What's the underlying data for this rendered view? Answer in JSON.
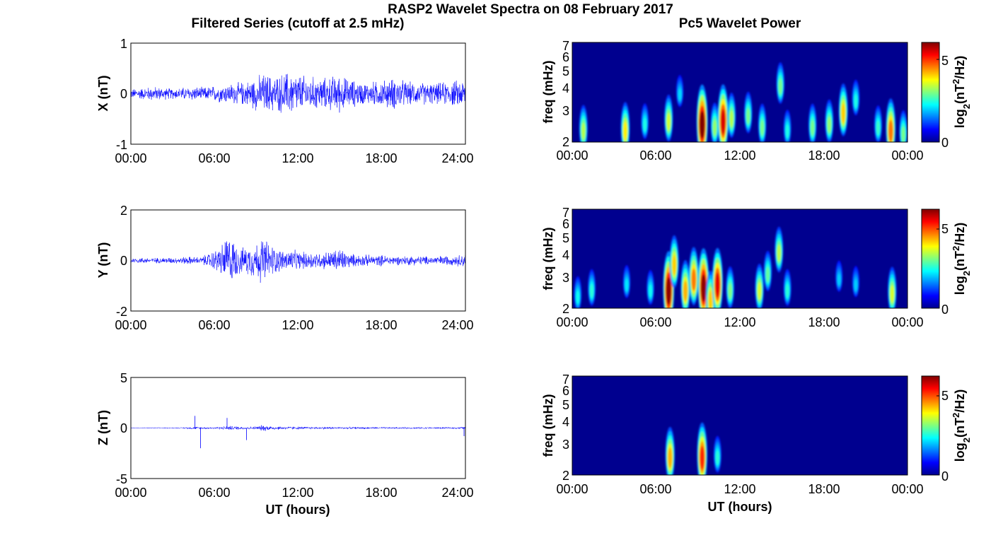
{
  "figure_title": "RASP2 Wavelet Spectra on 08 February 2017",
  "left_column_title": "Filtered Series (cutoff at 2.5 mHz)",
  "right_column_title": "Pc5 Wavelet Power",
  "xlabel": "UT (hours)",
  "colorbar_label": "log2(nT2/Hz)",
  "colors": {
    "series_line": "#0000ff",
    "spectrum_background": "#00008f"
  },
  "chart_data": [
    {
      "type": "line",
      "panel": "filtered-x",
      "ylabel": "X (nT)",
      "xlim": [
        0,
        24
      ],
      "ylim": [
        -1,
        1
      ],
      "x_ticks": [
        "00:00",
        "06:00",
        "12:00",
        "18:00",
        "24:00"
      ],
      "y_ticks": [
        "1",
        "0",
        "-1"
      ],
      "series": [
        {
          "x": [
            0,
            0.5,
            1,
            1.5,
            2,
            2.5,
            3,
            3.5,
            4,
            4.5,
            5,
            5.5,
            6,
            6.5,
            7,
            7.5,
            8,
            8.5,
            9,
            9.5,
            10,
            10.5,
            11,
            11.5,
            12,
            12.5,
            13,
            13.5,
            14,
            14.5,
            15,
            15.5,
            16,
            16.5,
            17,
            17.5,
            18,
            18.5,
            19,
            19.5,
            20,
            20.5,
            21,
            21.5,
            22,
            22.5,
            23,
            23.5,
            24
          ],
          "amplitude": [
            0.1,
            0.12,
            0.14,
            0.16,
            0.15,
            0.13,
            0.12,
            0.13,
            0.15,
            0.16,
            0.14,
            0.15,
            0.18,
            0.2,
            0.22,
            0.24,
            0.26,
            0.3,
            0.38,
            0.45,
            0.42,
            0.4,
            0.48,
            0.5,
            0.44,
            0.4,
            0.38,
            0.36,
            0.35,
            0.4,
            0.42,
            0.34,
            0.3,
            0.26,
            0.24,
            0.28,
            0.3,
            0.32,
            0.36,
            0.3,
            0.26,
            0.24,
            0.25,
            0.24,
            0.23,
            0.26,
            0.28,
            0.3,
            0.32
          ]
        }
      ]
    },
    {
      "type": "line",
      "panel": "filtered-y",
      "ylabel": "Y (nT)",
      "xlim": [
        0,
        24
      ],
      "ylim": [
        -2,
        2
      ],
      "x_ticks": [
        "00:00",
        "06:00",
        "12:00",
        "18:00",
        "24:00"
      ],
      "y_ticks": [
        "2",
        "0",
        "-2"
      ],
      "series": [
        {
          "x": [
            0,
            0.5,
            1,
            1.5,
            2,
            2.5,
            3,
            3.5,
            4,
            4.5,
            5,
            5.5,
            6,
            6.5,
            7,
            7.5,
            8,
            8.5,
            9,
            9.5,
            10,
            10.5,
            11,
            11.5,
            12,
            12.5,
            13,
            13.5,
            14,
            14.5,
            15,
            15.5,
            16,
            16.5,
            17,
            17.5,
            18,
            18.5,
            19,
            19.5,
            20,
            20.5,
            21,
            21.5,
            22,
            22.5,
            23,
            23.5,
            24
          ],
          "amplitude": [
            0.12,
            0.12,
            0.13,
            0.12,
            0.12,
            0.14,
            0.13,
            0.13,
            0.18,
            0.16,
            0.15,
            0.3,
            0.45,
            0.7,
            1.2,
            0.8,
            0.55,
            0.7,
            0.8,
            1.1,
            0.75,
            0.55,
            0.45,
            0.5,
            0.4,
            0.38,
            0.42,
            0.35,
            0.4,
            0.45,
            0.6,
            0.35,
            0.28,
            0.26,
            0.25,
            0.22,
            0.25,
            0.22,
            0.2,
            0.2,
            0.22,
            0.2,
            0.2,
            0.18,
            0.2,
            0.22,
            0.2,
            0.26,
            0.3
          ]
        }
      ]
    },
    {
      "type": "line",
      "panel": "filtered-z",
      "ylabel": "Z (nT)",
      "xlim": [
        0,
        24
      ],
      "ylim": [
        -5,
        5
      ],
      "x_ticks": [
        "00:00",
        "06:00",
        "12:00",
        "18:00",
        "24:00"
      ],
      "y_ticks": [
        "5",
        "0",
        "-5"
      ],
      "series": [
        {
          "x": [
            0,
            0.5,
            1,
            1.5,
            2,
            2.5,
            3,
            3.5,
            4,
            4.5,
            5,
            5.5,
            6,
            6.5,
            7,
            7.5,
            8,
            8.5,
            9,
            9.5,
            10,
            10.5,
            11,
            11.5,
            12,
            12.5,
            13,
            13.5,
            14,
            14.5,
            15,
            15.5,
            16,
            16.5,
            17,
            17.5,
            18,
            18.5,
            19,
            19.5,
            20,
            20.5,
            21,
            21.5,
            22,
            22.5,
            23,
            23.5,
            24
          ],
          "amplitude": [
            0.05,
            0.05,
            0.05,
            0.06,
            0.05,
            0.05,
            0.06,
            0.06,
            0.1,
            0.15,
            0.12,
            0.12,
            0.14,
            0.16,
            0.25,
            0.2,
            0.18,
            0.16,
            0.2,
            0.35,
            0.25,
            0.2,
            0.18,
            0.18,
            0.16,
            0.15,
            0.14,
            0.14,
            0.15,
            0.14,
            0.13,
            0.12,
            0.12,
            0.12,
            0.12,
            0.11,
            0.11,
            0.11,
            0.1,
            0.1,
            0.1,
            0.1,
            0.1,
            0.1,
            0.1,
            0.1,
            0.1,
            0.12,
            0.15
          ]
        }
      ],
      "spikes": [
        {
          "x": 4.6,
          "y": 1.2
        },
        {
          "x": 5.0,
          "y": -2.0
        },
        {
          "x": 6.9,
          "y": 1.0
        },
        {
          "x": 8.3,
          "y": -1.2
        },
        {
          "x": 23.9,
          "y": -0.8
        }
      ]
    },
    {
      "type": "heatmap",
      "panel": "pc5-power-x",
      "ylabel": "freq (mHz)",
      "yscale": "log",
      "ylim": [
        2,
        7
      ],
      "xlim": [
        0,
        24
      ],
      "x_ticks": [
        "00:00",
        "06:00",
        "12:00",
        "18:00",
        "00:00"
      ],
      "y_ticks": [
        "2",
        "3",
        "4",
        "5",
        "6",
        "7"
      ],
      "colorbar": {
        "range": [
          0,
          6
        ],
        "ticks": [
          "0",
          "5"
        ]
      },
      "blobs": [
        {
          "t": 0.8,
          "f": 2.4,
          "power": 3.0
        },
        {
          "t": 3.8,
          "f": 2.4,
          "power": 3.6
        },
        {
          "t": 5.2,
          "f": 2.6,
          "power": 2.0
        },
        {
          "t": 6.9,
          "f": 2.7,
          "power": 3.2
        },
        {
          "t": 7.7,
          "f": 3.8,
          "power": 1.6
        },
        {
          "t": 9.3,
          "f": 2.6,
          "power": 6.0
        },
        {
          "t": 10.2,
          "f": 2.5,
          "power": 2.8
        },
        {
          "t": 10.8,
          "f": 2.7,
          "power": 5.4
        },
        {
          "t": 11.4,
          "f": 2.8,
          "power": 3.0
        },
        {
          "t": 12.6,
          "f": 2.9,
          "power": 2.6
        },
        {
          "t": 13.6,
          "f": 2.5,
          "power": 2.6
        },
        {
          "t": 14.9,
          "f": 4.2,
          "power": 2.6
        },
        {
          "t": 15.4,
          "f": 2.4,
          "power": 2.0
        },
        {
          "t": 17.2,
          "f": 2.5,
          "power": 2.6
        },
        {
          "t": 18.4,
          "f": 2.6,
          "power": 2.8
        },
        {
          "t": 19.4,
          "f": 3.0,
          "power": 3.8
        },
        {
          "t": 20.3,
          "f": 3.5,
          "power": 2.0
        },
        {
          "t": 21.9,
          "f": 2.5,
          "power": 2.2
        },
        {
          "t": 22.8,
          "f": 2.4,
          "power": 4.4
        },
        {
          "t": 23.7,
          "f": 2.3,
          "power": 2.6
        }
      ]
    },
    {
      "type": "heatmap",
      "panel": "pc5-power-y",
      "ylabel": "freq (mHz)",
      "yscale": "log",
      "ylim": [
        2,
        7
      ],
      "xlim": [
        0,
        24
      ],
      "x_ticks": [
        "00:00",
        "06:00",
        "12:00",
        "18:00",
        "00:00"
      ],
      "y_ticks": [
        "2",
        "3",
        "4",
        "5",
        "6",
        "7"
      ],
      "colorbar": {
        "range": [
          0,
          6.3
        ],
        "ticks": [
          "0",
          "5"
        ]
      },
      "blobs": [
        {
          "t": 0.4,
          "f": 2.4,
          "power": 2.0
        },
        {
          "t": 1.4,
          "f": 2.6,
          "power": 2.2
        },
        {
          "t": 3.9,
          "f": 2.8,
          "power": 1.8
        },
        {
          "t": 5.6,
          "f": 2.6,
          "power": 2.0
        },
        {
          "t": 6.9,
          "f": 2.6,
          "power": 6.2
        },
        {
          "t": 7.3,
          "f": 3.6,
          "power": 4.0
        },
        {
          "t": 8.1,
          "f": 2.6,
          "power": 4.2
        },
        {
          "t": 8.7,
          "f": 3.0,
          "power": 4.6
        },
        {
          "t": 9.4,
          "f": 2.7,
          "power": 6.2
        },
        {
          "t": 9.9,
          "f": 2.3,
          "power": 4.0
        },
        {
          "t": 10.4,
          "f": 2.8,
          "power": 5.6
        },
        {
          "t": 11.3,
          "f": 2.6,
          "power": 2.8
        },
        {
          "t": 13.4,
          "f": 2.6,
          "power": 3.4
        },
        {
          "t": 14.0,
          "f": 3.2,
          "power": 2.6
        },
        {
          "t": 14.8,
          "f": 4.2,
          "power": 3.2
        },
        {
          "t": 15.4,
          "f": 2.6,
          "power": 2.2
        },
        {
          "t": 19.1,
          "f": 3.0,
          "power": 1.6
        },
        {
          "t": 20.3,
          "f": 2.8,
          "power": 1.6
        },
        {
          "t": 22.9,
          "f": 2.5,
          "power": 3.4
        }
      ]
    },
    {
      "type": "heatmap",
      "panel": "pc5-power-z",
      "ylabel": "freq (mHz)",
      "yscale": "log",
      "ylim": [
        2,
        7
      ],
      "xlim": [
        0,
        24
      ],
      "x_ticks": [
        "00:00",
        "06:00",
        "12:00",
        "18:00",
        "00:00"
      ],
      "y_ticks": [
        "2",
        "3",
        "4",
        "5",
        "6",
        "7"
      ],
      "colorbar": {
        "range": [
          0,
          6.3
        ],
        "ticks": [
          "0",
          "5"
        ]
      },
      "blobs": [
        {
          "t": 7.0,
          "f": 2.6,
          "power": 4.2
        },
        {
          "t": 9.3,
          "f": 2.6,
          "power": 5.2
        },
        {
          "t": 10.4,
          "f": 2.6,
          "power": 2.2
        }
      ]
    }
  ]
}
